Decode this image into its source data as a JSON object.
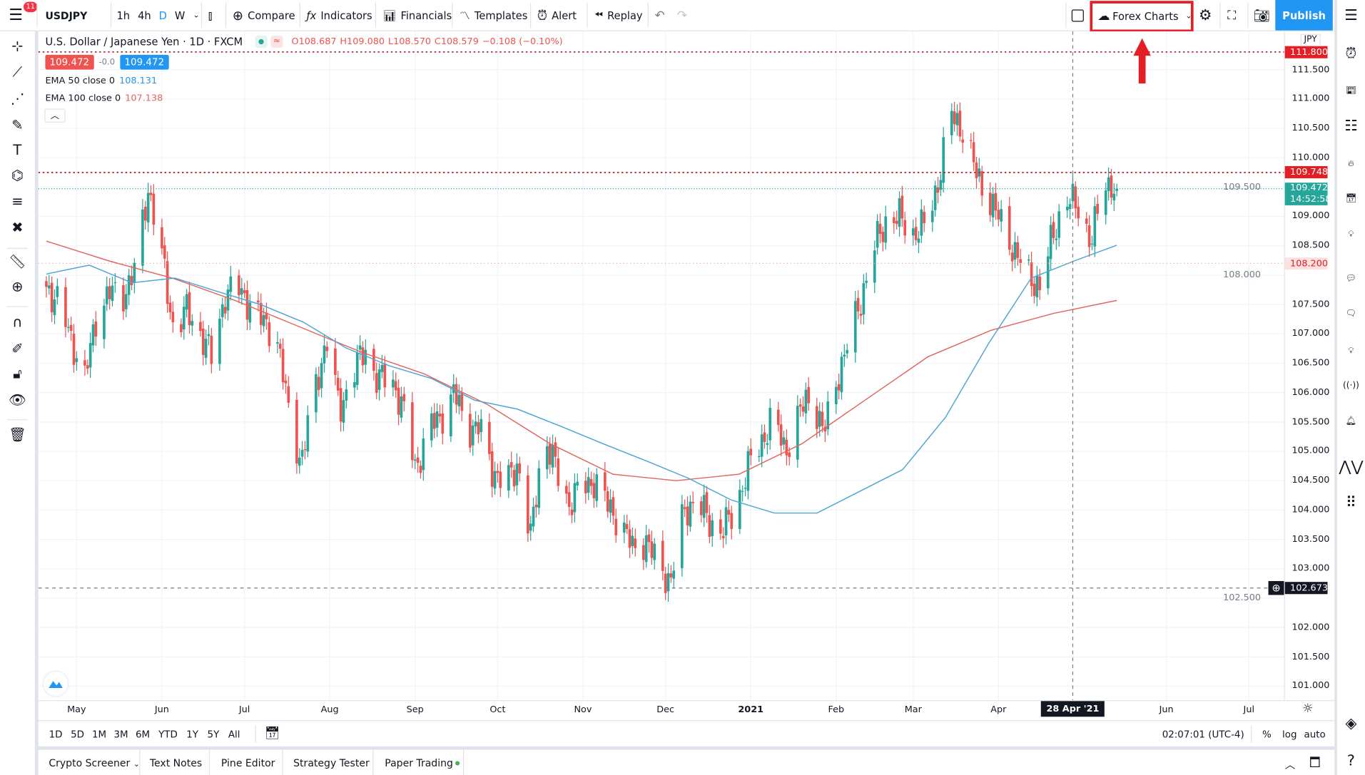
{
  "topbar": {
    "menu_badge": "11",
    "symbol": "USDJPY",
    "intervals": [
      "1h",
      "4h",
      "D",
      "W"
    ],
    "active_interval": "D",
    "compare": "Compare",
    "indicators": "Indicators",
    "financials": "Financials",
    "templates": "Templates",
    "alert": "Alert",
    "replay": "Replay",
    "layout_name": "Forex Charts",
    "publish": "Publish"
  },
  "legend": {
    "title": "U.S. Dollar / Japanese Yen · 1D · FXCM",
    "open": "O108.687",
    "high": "H109.080",
    "low": "L108.570",
    "close": "C108.579",
    "change": "−0.108 (−0.10%)",
    "sell": "109.472",
    "spread": "-0.0",
    "buy": "109.472",
    "ema50_label": "EMA 50 close 0",
    "ema50_value": "108.131",
    "ema100_label": "EMA 100 close 0",
    "ema100_value": "107.138"
  },
  "price_axis": {
    "currency": "JPY",
    "ticks": [
      "111.500",
      "111.000",
      "110.500",
      "110.000",
      "109.500",
      "109.000",
      "108.500",
      "108.000",
      "107.500",
      "107.000",
      "106.500",
      "106.000",
      "105.500",
      "105.000",
      "104.500",
      "104.000",
      "103.500",
      "103.000",
      "102.500",
      "102.000",
      "101.500",
      "101.000"
    ],
    "alert_high": "111.800",
    "alert_mid": "109.748",
    "last_price": "109.472",
    "countdown": "14:52:58",
    "alert_low": "108.200",
    "crosshair_price": "102.673"
  },
  "time_axis": {
    "ticks": [
      "May",
      "Jun",
      "Jul",
      "Aug",
      "Sep",
      "Oct",
      "Nov",
      "Dec",
      "2021",
      "Feb",
      "Mar",
      "Apr",
      "Jun",
      "Jul"
    ],
    "crosshair_date": "28 Apr '21"
  },
  "range_bar": {
    "ranges": [
      "1D",
      "5D",
      "1M",
      "3M",
      "6M",
      "YTD",
      "1Y",
      "5Y",
      "All"
    ],
    "clock": "02:07:01 (UTC-4)",
    "percent": "%",
    "log": "log",
    "auto": "auto"
  },
  "bottom_tabs": [
    "Crypto Screener",
    "Text Notes",
    "Pine Editor",
    "Strategy Tester",
    "Paper Trading"
  ],
  "colors": {
    "up": "#26a69a",
    "down": "#ef5350",
    "ema50": "#4ea5d3",
    "ema100": "#e0675d",
    "accent": "#2196f3",
    "highlight": "#e31e24"
  },
  "chart_data": {
    "type": "candlestick",
    "symbol": "USDJPY",
    "interval": "1D",
    "start": "2020-04-20",
    "end": "2021-05-14",
    "ylim": [
      100.8,
      112.2
    ],
    "grid": true,
    "closes": [
      107.8,
      107.5,
      106.9,
      106.2,
      107.4,
      107.7,
      107.65,
      108.1,
      109.5,
      108.4,
      107.05,
      107.4,
      107.05,
      106.6,
      107.65,
      107.8,
      107.5,
      107.2,
      107.05,
      105.7,
      104.8,
      106.0,
      106.9,
      105.7,
      106.3,
      106.75,
      106.2,
      106.3,
      105.7,
      104.7,
      105.4,
      105.6,
      106.0,
      105.4,
      105.4,
      104.7,
      104.4,
      104.8,
      103.5,
      105.3,
      104.7,
      104.1,
      104.4,
      104.5,
      104.1,
      103.8,
      103.35,
      103.5,
      103.05,
      102.8,
      103.95,
      104.2,
      103.8,
      103.65,
      103.95,
      104.7,
      105.1,
      105.6,
      105.0,
      105.6,
      106.0,
      105.3,
      106.2,
      106.9,
      107.65,
      108.5,
      108.98,
      108.98,
      108.7,
      108.85,
      109.6,
      110.75,
      110.45,
      109.7,
      109.3,
      108.85,
      108.4,
      108.0,
      107.8,
      108.7,
      109.3,
      109.15,
      108.55,
      109.6,
      109.47
    ],
    "ema50": [
      108.02,
      108.17,
      107.87,
      107.95,
      107.72,
      107.5,
      107.2,
      106.76,
      106.46,
      106.24,
      105.87,
      105.72,
      105.43,
      105.13,
      104.84,
      104.54,
      104.17,
      103.95,
      103.95,
      104.32,
      104.69,
      105.58,
      106.83,
      107.95,
      108.24,
      108.51
    ],
    "ema100": [
      108.58,
      108.24,
      107.95,
      107.57,
      107.13,
      106.69,
      106.32,
      105.8,
      105.13,
      104.61,
      104.5,
      104.61,
      105.13,
      105.87,
      106.61,
      107.06,
      107.35,
      107.57
    ]
  }
}
